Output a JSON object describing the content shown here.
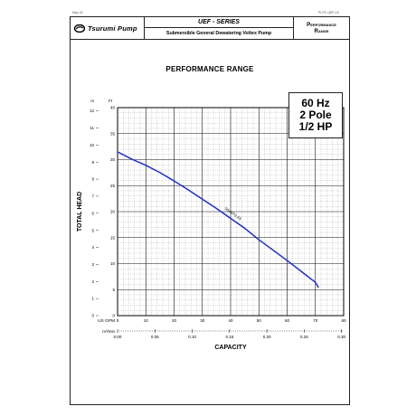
{
  "sheet": {
    "corner_left": "May 15",
    "corner_right": "PI-PC-UEF-15"
  },
  "header": {
    "brand": "Tsurumi Pump",
    "series": "UEF - SERIES",
    "description": "Submersible General Dewatering Voltex Pump",
    "section_line1": "Performance",
    "section_line2": "Range"
  },
  "spec": {
    "hz": "60 Hz",
    "pole": "2 Pole",
    "hp": "1/2 HP"
  },
  "chart_data": {
    "type": "line",
    "title": "PERFORMANCE RANGE",
    "xlabel": "CAPACITY",
    "ylabel": "TOTAL HEAD",
    "x_primary_unit": "US GPM",
    "x_secondary_unit": "m³/min",
    "y_primary_unit": "Ft",
    "y_secondary_unit": "m",
    "xlim": [
      0,
      80
    ],
    "ylim": [
      0,
      40
    ],
    "x_ticks": [
      "0",
      "10",
      "20",
      "30",
      "40",
      "50",
      "60",
      "70",
      "80"
    ],
    "x2_ticks": [
      "0.00",
      "0.05",
      "0.10",
      "0.15",
      "0.20",
      "0.25",
      "0.30"
    ],
    "y_ticks": [
      "0",
      "5",
      "10",
      "15",
      "20",
      "25",
      "30",
      "35",
      "40"
    ],
    "y2_ticks": [
      "0",
      "1",
      "2",
      "3",
      "4",
      "5",
      "6",
      "7",
      "8",
      "9",
      "10",
      "11",
      "12"
    ],
    "grid": true,
    "series": [
      {
        "name": "50UEF2.4S",
        "color": "#1f2fc8",
        "x": [
          0,
          5,
          10,
          15,
          20,
          25,
          30,
          35,
          40,
          45,
          50,
          55,
          60,
          65,
          70,
          71
        ],
        "y": [
          31.5,
          30.1,
          28.9,
          27.5,
          25.9,
          24.2,
          22.4,
          20.6,
          18.7,
          16.8,
          14.6,
          12.6,
          10.6,
          8.5,
          6.4,
          5.5
        ]
      }
    ]
  }
}
